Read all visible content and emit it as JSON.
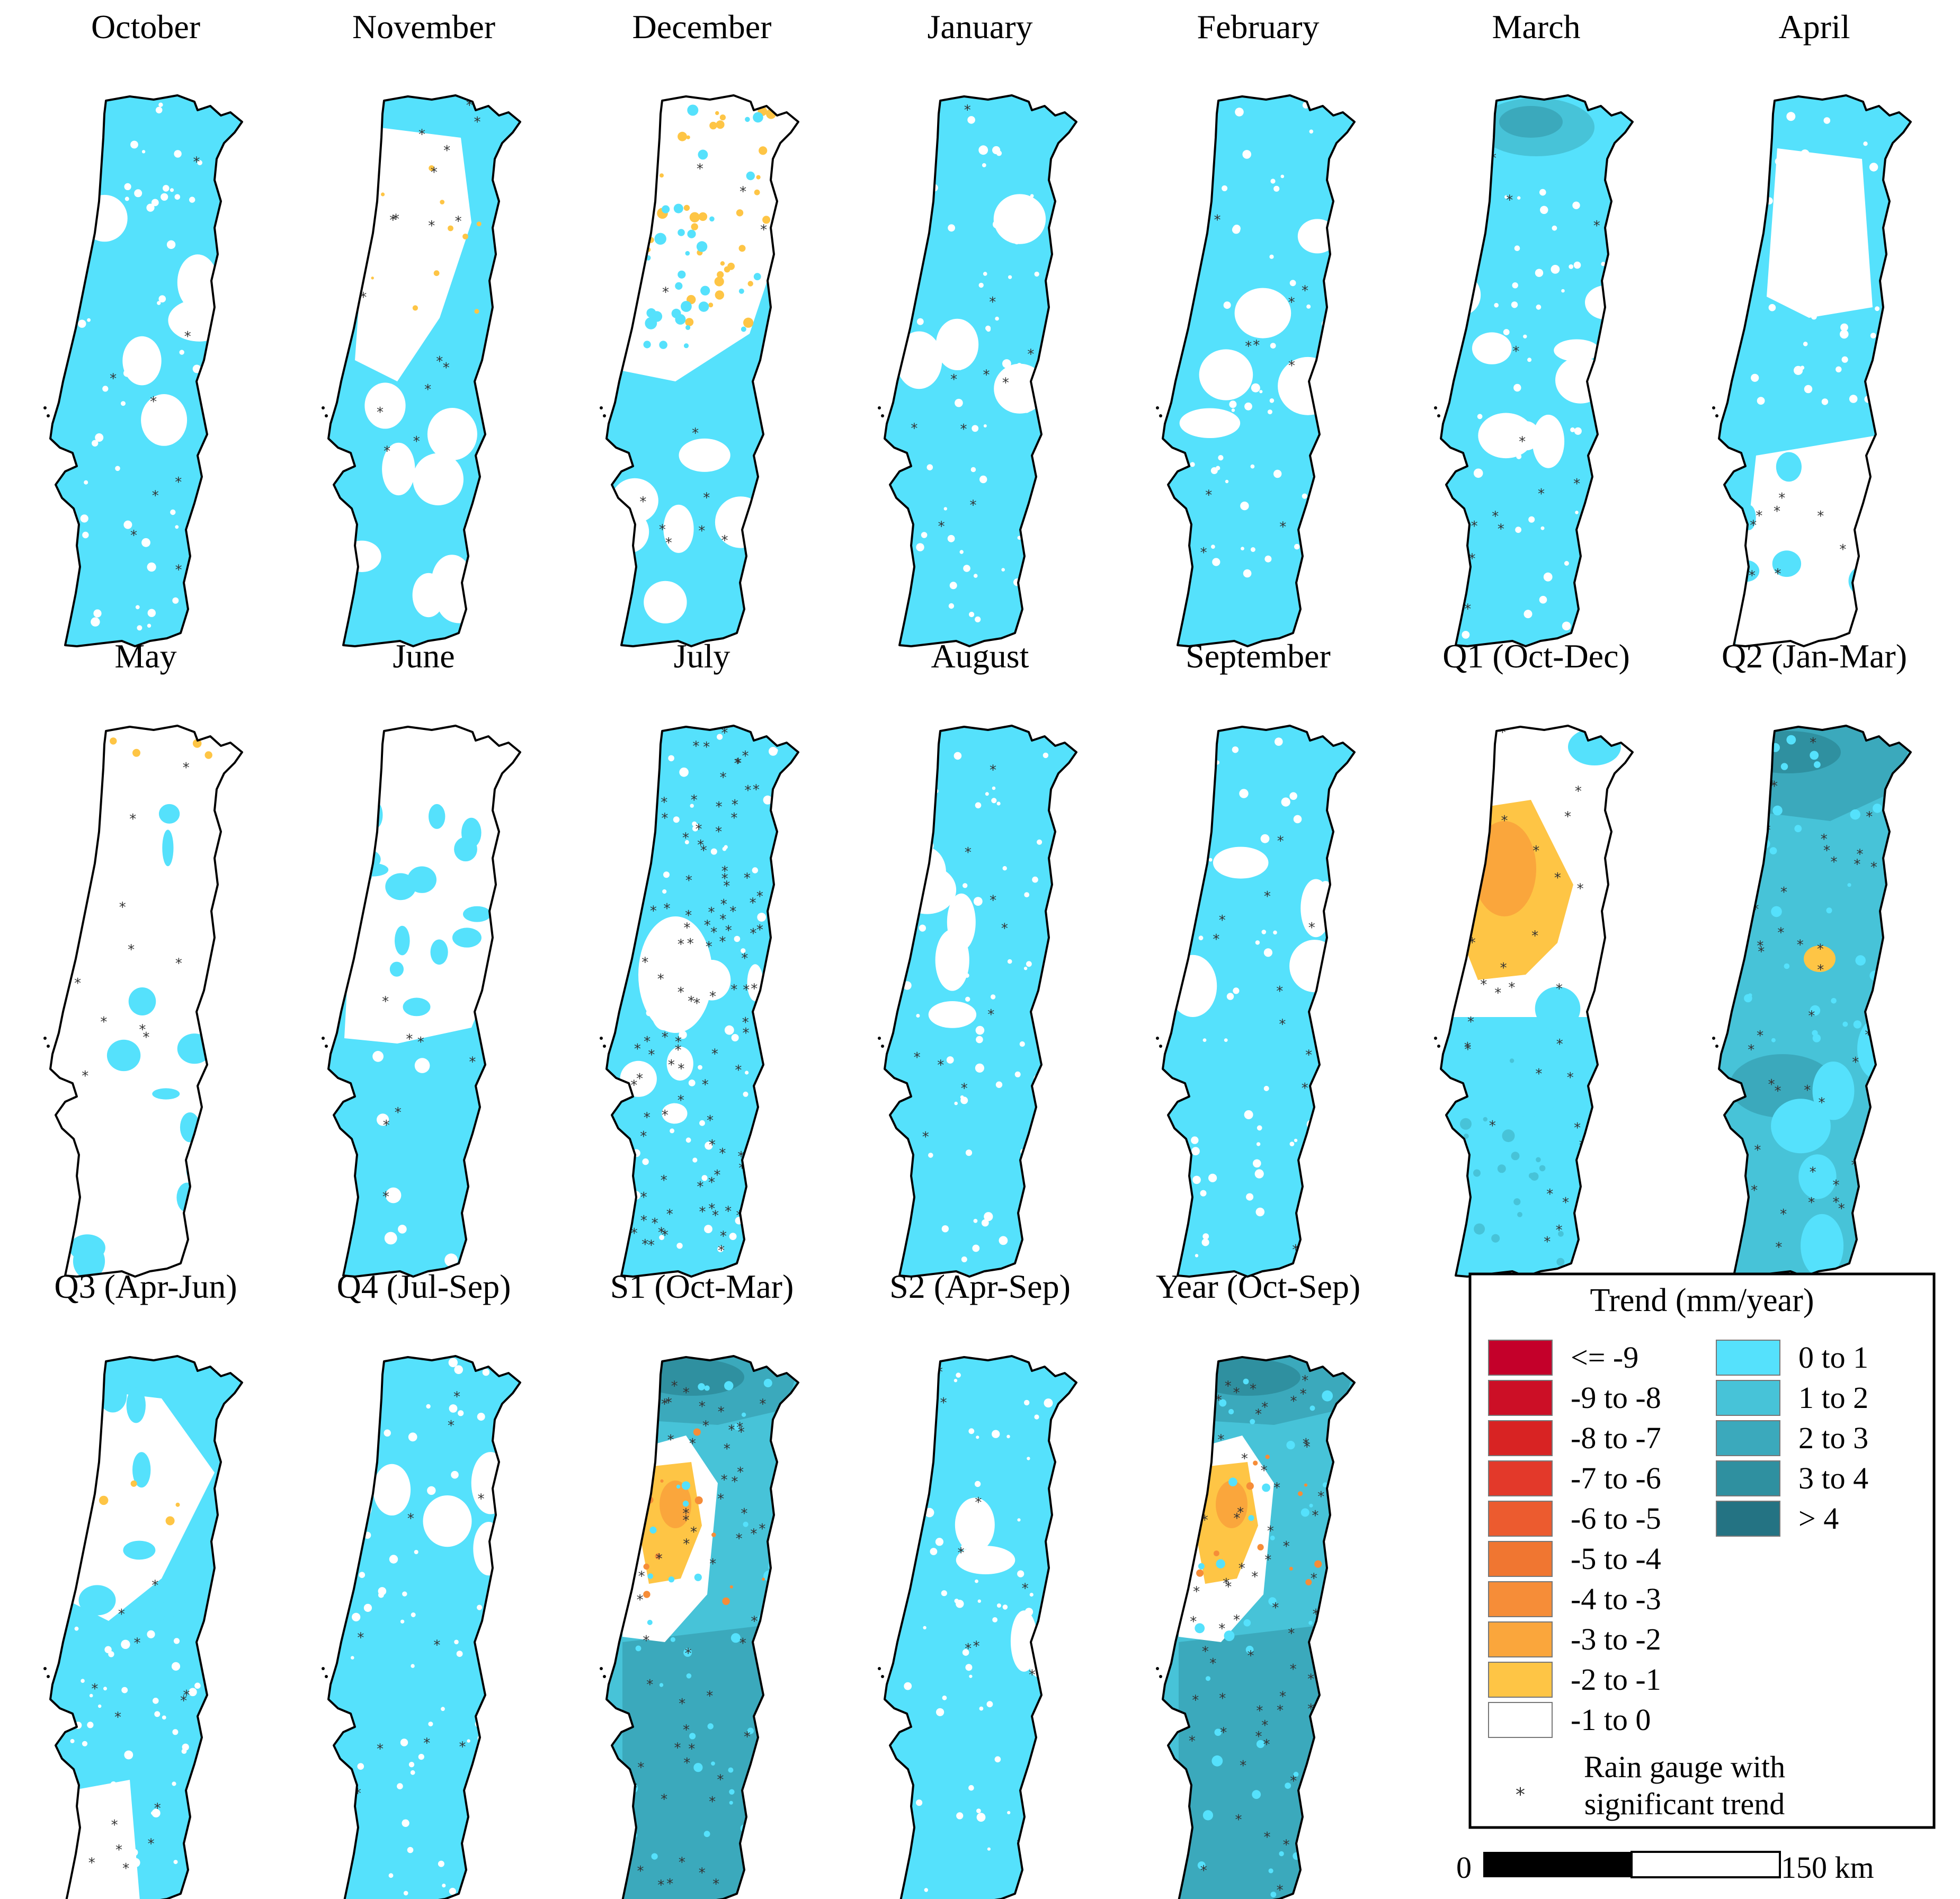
{
  "panels": [
    {
      "title": "October",
      "pattern": "mostly-positive"
    },
    {
      "title": "November",
      "pattern": "mixed-north-negative"
    },
    {
      "title": "December",
      "pattern": "north-neutral-hotspots"
    },
    {
      "title": "January",
      "pattern": "mostly-positive"
    },
    {
      "title": "February",
      "pattern": "mostly-positive"
    },
    {
      "title": "March",
      "pattern": "positive-north-strong"
    },
    {
      "title": "April",
      "pattern": "mixed-south-neutral"
    },
    {
      "title": "May",
      "pattern": "mostly-neutral"
    },
    {
      "title": "June",
      "pattern": "north-neutral-south-positive"
    },
    {
      "title": "July",
      "pattern": "mostly-positive-dense-gauges"
    },
    {
      "title": "August",
      "pattern": "mostly-positive"
    },
    {
      "title": "September",
      "pattern": "mostly-positive"
    },
    {
      "title": "Q1 (Oct-Dec)",
      "pattern": "central-negative"
    },
    {
      "title": "Q2 (Jan-Mar)",
      "pattern": "strong-positive"
    },
    {
      "title": "Q3 (Apr-Jun)",
      "pattern": "mixed"
    },
    {
      "title": "Q4 (Jul-Sep)",
      "pattern": "mostly-positive"
    },
    {
      "title": "S1 (Oct-Mar)",
      "pattern": "central-negative-strong-positive"
    },
    {
      "title": "S2 (Apr-Sep)",
      "pattern": "mostly-positive"
    },
    {
      "title": "Year (Oct-Sep)",
      "pattern": "central-negative-strong-positive"
    }
  ],
  "legend": {
    "title": "Trend (mm/year)",
    "negative_classes": [
      {
        "label": "<= -9",
        "color": "#c4002a"
      },
      {
        "label": "-9 to -8",
        "color": "#cc0f26"
      },
      {
        "label": "-8 to -7",
        "color": "#d82323"
      },
      {
        "label": "-7 to -6",
        "color": "#e3392a"
      },
      {
        "label": "-6 to -5",
        "color": "#ec5b2f"
      },
      {
        "label": "-5 to -4",
        "color": "#f07631"
      },
      {
        "label": "-4 to -3",
        "color": "#f68d38"
      },
      {
        "label": "-3 to -2",
        "color": "#faa63c"
      },
      {
        "label": "-2 to -1",
        "color": "#fec545"
      },
      {
        "label": "-1 to 0",
        "color": "#ffffff"
      }
    ],
    "positive_classes": [
      {
        "label": "0 to 1",
        "color": "#55e1fc"
      },
      {
        "label": "1 to 2",
        "color": "#47c3d8"
      },
      {
        "label": "2 to 3",
        "color": "#3ba9bc"
      },
      {
        "label": "3 to 4",
        "color": "#2f90a0"
      },
      {
        "label": "> 4",
        "color": "#247383"
      }
    ],
    "gauge_label_line1": "Rain gauge with",
    "gauge_label_line2": "significant trend"
  },
  "scale_bar": {
    "start_label": "0",
    "end_label": "150 km"
  }
}
